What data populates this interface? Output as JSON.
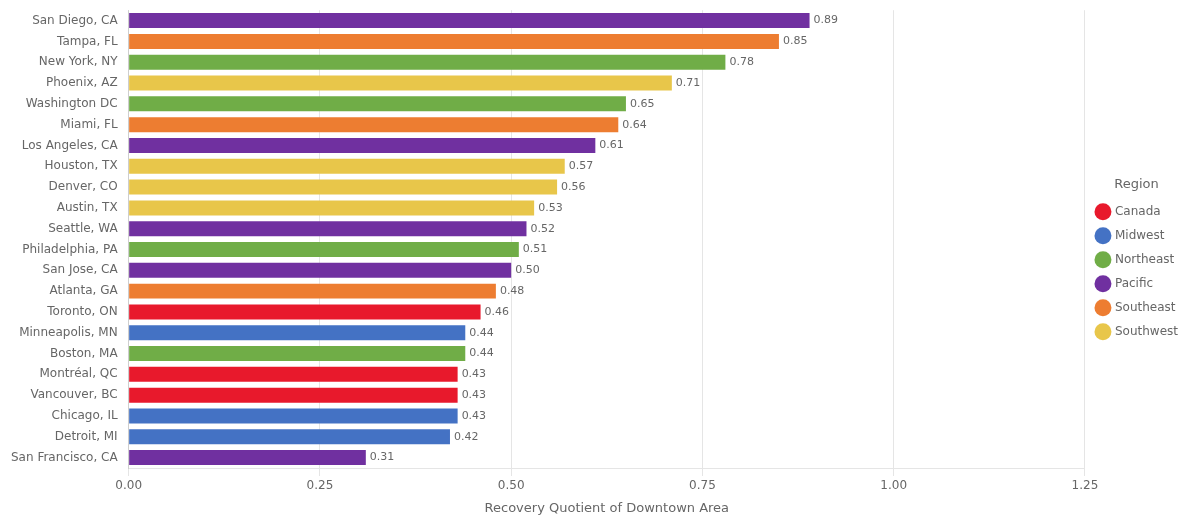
{
  "chart_data": {
    "type": "bar",
    "orientation": "horizontal",
    "xlabel": "Recovery Quotient of Downtown Area",
    "categories": [
      "San Francisco, CA",
      "Detroit, MI",
      "Chicago, IL",
      "Vancouver, BC",
      "Montréal, QC",
      "Boston, MA",
      "Minneapolis, MN",
      "Toronto, ON",
      "Atlanta, GA",
      "San Jose, CA",
      "Philadelphia, PA",
      "Seattle, WA",
      "Austin, TX",
      "Denver, CO",
      "Houston, TX",
      "Los Angeles, CA",
      "Miami, FL",
      "Washington DC",
      "Phoenix, AZ",
      "New York, NY",
      "Tampa, FL",
      "San Diego, CA"
    ],
    "series": [
      {
        "name": "Canada",
        "color": "#E8192C",
        "values": [
          null,
          null,
          null,
          0.43,
          0.43,
          null,
          null,
          0.46,
          null,
          null,
          null,
          null,
          null,
          null,
          null,
          null,
          null,
          null,
          null,
          null,
          null,
          null
        ],
        "value_labels": [
          null,
          null,
          null,
          "0.43",
          "0.43",
          null,
          null,
          "0.46",
          null,
          null,
          null,
          null,
          null,
          null,
          null,
          null,
          null,
          null,
          null,
          null,
          null,
          null
        ]
      },
      {
        "name": "Midwest",
        "color": "#4472C4",
        "values": [
          null,
          0.42,
          0.43,
          null,
          null,
          null,
          0.44,
          null,
          null,
          null,
          null,
          null,
          null,
          null,
          null,
          null,
          null,
          null,
          null,
          null,
          null,
          null
        ],
        "value_labels": [
          null,
          "0.42",
          "0.43",
          null,
          null,
          null,
          "0.44",
          null,
          null,
          null,
          null,
          null,
          null,
          null,
          null,
          null,
          null,
          null,
          null,
          null,
          null,
          null
        ]
      },
      {
        "name": "Northeast",
        "color": "#70AD47",
        "values": [
          null,
          null,
          null,
          null,
          null,
          0.44,
          null,
          null,
          null,
          null,
          0.51,
          null,
          null,
          null,
          null,
          null,
          null,
          0.65,
          null,
          0.78,
          null,
          null
        ],
        "value_labels": [
          null,
          null,
          null,
          null,
          null,
          "0.44",
          null,
          null,
          null,
          null,
          "0.51",
          null,
          null,
          null,
          null,
          null,
          null,
          "0.65",
          null,
          "0.78",
          null,
          null
        ]
      },
      {
        "name": "Pacific",
        "color": "#7030A0",
        "values": [
          0.31,
          null,
          null,
          null,
          null,
          null,
          null,
          null,
          null,
          0.5,
          null,
          0.52,
          null,
          null,
          null,
          0.61,
          null,
          null,
          null,
          null,
          null,
          0.89
        ],
        "value_labels": [
          "0.31",
          null,
          null,
          null,
          null,
          null,
          null,
          null,
          null,
          "0.50",
          null,
          "0.52",
          null,
          null,
          null,
          "0.61",
          null,
          null,
          null,
          null,
          null,
          "0.89"
        ]
      },
      {
        "name": "Southeast",
        "color": "#ED7D31",
        "values": [
          null,
          null,
          null,
          null,
          null,
          null,
          null,
          null,
          0.48,
          null,
          null,
          null,
          null,
          null,
          null,
          null,
          0.64,
          null,
          null,
          null,
          0.85,
          null
        ],
        "value_labels": [
          null,
          null,
          null,
          null,
          null,
          null,
          null,
          null,
          "0.48",
          null,
          null,
          null,
          null,
          null,
          null,
          null,
          "0.64",
          null,
          null,
          null,
          "0.85",
          null
        ]
      },
      {
        "name": "Southwest",
        "color": "#E8C64A",
        "values": [
          null,
          null,
          null,
          null,
          null,
          null,
          null,
          null,
          null,
          null,
          null,
          null,
          0.53,
          0.56,
          0.57,
          null,
          null,
          null,
          0.71,
          null,
          null,
          null
        ],
        "value_labels": [
          null,
          null,
          null,
          null,
          null,
          null,
          null,
          null,
          null,
          null,
          null,
          null,
          "0.53",
          "0.56",
          "0.57",
          null,
          null,
          null,
          "0.71",
          null,
          null,
          null
        ]
      }
    ],
    "xlim": [
      0,
      1.25
    ],
    "xticks": [
      {
        "value": 0,
        "label": "0.00"
      },
      0.25,
      {
        "value": 0.5,
        "label": "0.50"
      },
      0.75,
      {
        "value": 1,
        "label": "1.00"
      },
      1.25
    ],
    "grid": true,
    "legend": "right",
    "legend_title": "Region",
    "data_labels": true
  }
}
